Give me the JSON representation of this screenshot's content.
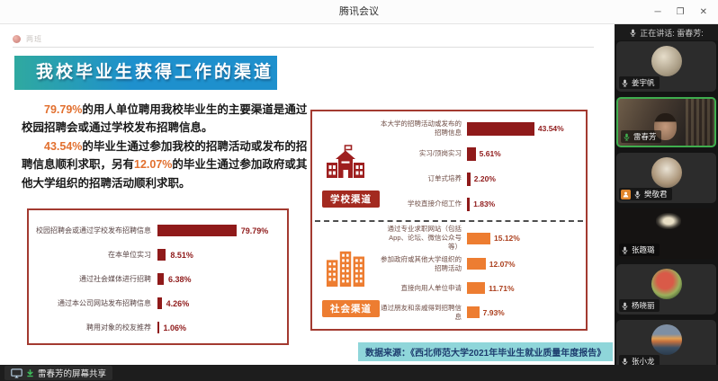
{
  "window": {
    "title": "腾讯会议",
    "minimize": "─",
    "maximize": "❐",
    "close": "✕"
  },
  "doc_header": {
    "title": "两班"
  },
  "slide": {
    "title": "我校毕业生获得工作的渠道",
    "para1": {
      "pct": "79.79%",
      "text": "的用人单位聘用我校毕业生的主要渠道是通过校园招聘会或通过学校发布招聘信息。"
    },
    "para2": {
      "pct1": "43.54%",
      "text1": "的毕业生通过参加我校的招聘活动或发布的招聘信息顺利求职，另有",
      "pct2": "12.07%",
      "text2": "的毕业生通过参加政府或其他大学组织的招聘活动顺利求职。"
    },
    "employer_chart": {
      "type": "bar",
      "rows": [
        {
          "label": "校园招聘会或通过学校发布招聘信息",
          "value": 79.79,
          "display": "79.79%"
        },
        {
          "label": "在本单位实习",
          "value": 8.51,
          "display": "8.51%"
        },
        {
          "label": "通过社会媒体进行招聘",
          "value": 6.38,
          "display": "6.38%"
        },
        {
          "label": "通过本公司网站发布招聘信息",
          "value": 4.26,
          "display": "4.26%"
        },
        {
          "label": "聘用对象的校友推荐",
          "value": 1.06,
          "display": "1.06%"
        }
      ]
    },
    "school_chart": {
      "type": "bar",
      "tag": "学校渠道",
      "rows": [
        {
          "label": "本大学的招聘活动或发布的招聘信息",
          "value": 43.54,
          "display": "43.54%"
        },
        {
          "label": "实习/顶岗实习",
          "value": 5.61,
          "display": "5.61%"
        },
        {
          "label": "订单式培养",
          "value": 2.2,
          "display": "2.20%"
        },
        {
          "label": "学校直接介绍工作",
          "value": 1.83,
          "display": "1.83%"
        }
      ]
    },
    "social_chart": {
      "type": "bar",
      "tag": "社会渠道",
      "rows": [
        {
          "label": "通过专业求职网站（包括App、论坛、微信公众号等）",
          "value": 15.12,
          "display": "15.12%"
        },
        {
          "label": "参加政府或其他大学组织的招聘活动",
          "value": 12.07,
          "display": "12.07%"
        },
        {
          "label": "直接向用人单位申请",
          "value": 11.71,
          "display": "11.71%"
        },
        {
          "label": "通过朋友和亲戚得到招聘信息",
          "value": 7.93,
          "display": "7.93%"
        }
      ]
    },
    "source_note": "数据来源：《西北师范大学2021年毕业生就业质量年度报告》"
  },
  "sidebar": {
    "speaking_banner": "正在讲话: 雷春芳:",
    "participants": [
      {
        "name": "姜宇帆"
      },
      {
        "name": "雷春芳"
      },
      {
        "name": "樊敬君"
      },
      {
        "name": "张趣璐"
      },
      {
        "name": "杨晓丽"
      },
      {
        "name": "张小龙"
      }
    ]
  },
  "bottom_bar": {
    "label": "雷春芳的屏幕共享"
  },
  "colors": {
    "dark_red": "#8f1a1a",
    "orange": "#ed7d31",
    "title_gradient_start": "#2fa9a0",
    "title_gradient_end": "#1e90cd",
    "source_bg": "#8fd6da",
    "speaking_green": "#3fae4e"
  }
}
